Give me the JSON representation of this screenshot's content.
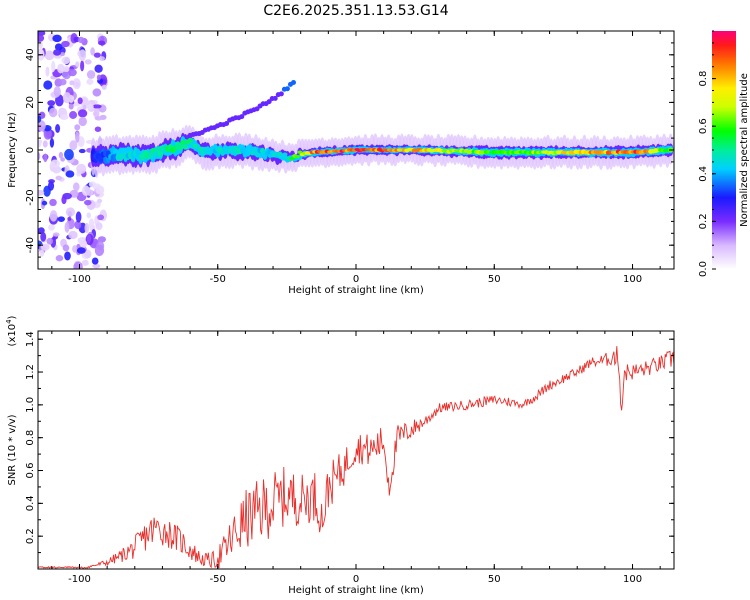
{
  "title": "C2E6.2025.351.13.53.G14",
  "chart_data": [
    {
      "type": "heatmap",
      "panel": "spectrogram",
      "xlabel": "Height of straight line (km)",
      "ylabel": "Frequency (Hz)",
      "xlim": [
        -115,
        115
      ],
      "ylim": [
        -50,
        50
      ],
      "xticks": [
        -100,
        -50,
        0,
        50,
        100
      ],
      "xtick_labels": [
        "-100",
        "-50",
        "0",
        "50",
        "100"
      ],
      "yticks": [
        -40,
        -20,
        0,
        20,
        40
      ],
      "ytick_labels": [
        "-40",
        "-20",
        "0",
        "20",
        "40"
      ],
      "colorbar": {
        "label": "Normalized spectral amplitude",
        "range": [
          0,
          1
        ],
        "ticks": [
          0.0,
          0.2,
          0.4,
          0.6,
          0.8
        ],
        "tick_labels": [
          "0.0",
          "0.2",
          "0.4",
          "0.6",
          "0.8"
        ]
      },
      "features": {
        "noise_region_x": [
          -115,
          -93
        ],
        "main_band": {
          "x": [
            -95,
            -85,
            -75,
            -65,
            -60,
            -55,
            -45,
            -35,
            -25,
            -15,
            0,
            20,
            50,
            80,
            100,
            114
          ],
          "center_hz": [
            -3,
            -2,
            -2,
            1,
            3,
            -1,
            0,
            -1,
            -3,
            -1,
            0,
            0,
            -1,
            -1,
            -1,
            0
          ],
          "halfwidth_hz": [
            4,
            4,
            4,
            4,
            3,
            3,
            3,
            3,
            2,
            2,
            2,
            2,
            2.5,
            2.5,
            2.5,
            2.5
          ],
          "peak_amplitude": [
            0.3,
            0.45,
            0.5,
            0.55,
            0.5,
            0.45,
            0.5,
            0.45,
            0.5,
            0.9,
            0.95,
            0.85,
            0.6,
            0.8,
            0.95,
            0.6
          ]
        },
        "harmonic_trace": {
          "x": [
            -60,
            -50,
            -42,
            -35,
            -28,
            -22
          ],
          "hz": [
            6,
            10,
            14,
            18,
            23,
            29
          ]
        }
      }
    },
    {
      "type": "line",
      "panel": "snr",
      "xlabel": "Height of straight line (km)",
      "ylabel": "SNR (10 * v/v)",
      "y_multiplier_label": "(x10",
      "y_multiplier_exp": "4",
      "y_multiplier_close": ")",
      "xlim": [
        -115,
        115
      ],
      "ylim": [
        0,
        1.45
      ],
      "xticks": [
        -100,
        -50,
        0,
        50,
        100
      ],
      "xtick_labels": [
        "-100",
        "-50",
        "0",
        "50",
        "100"
      ],
      "yticks": [
        0.2,
        0.4,
        0.6,
        0.8,
        1.0,
        1.2,
        1.4
      ],
      "ytick_labels": [
        "0.2",
        "0.4",
        "0.6",
        "0.8",
        "1.0",
        "1.2",
        "1.4"
      ],
      "series": [
        {
          "name": "SNR",
          "color": "#e8302c",
          "x": [
            -115,
            -100,
            -90,
            -85,
            -80,
            -75,
            -72,
            -68,
            -64,
            -60,
            -56,
            -52,
            -48,
            -45,
            -40,
            -35,
            -30,
            -25,
            -20,
            -15,
            -12,
            -10,
            -5,
            0,
            5,
            10,
            12,
            15,
            20,
            25,
            30,
            40,
            50,
            55,
            60,
            65,
            70,
            75,
            80,
            85,
            90,
            93,
            95,
            96,
            97,
            100,
            105,
            110,
            114
          ],
          "y": [
            0.0,
            0.0,
            0.04,
            0.08,
            0.13,
            0.22,
            0.25,
            0.22,
            0.18,
            0.12,
            0.06,
            0.05,
            0.1,
            0.18,
            0.3,
            0.35,
            0.4,
            0.45,
            0.42,
            0.45,
            0.3,
            0.5,
            0.6,
            0.75,
            0.72,
            0.78,
            0.5,
            0.8,
            0.85,
            0.9,
            0.98,
            1.0,
            1.03,
            1.02,
            1.0,
            1.05,
            1.12,
            1.16,
            1.2,
            1.26,
            1.27,
            1.3,
            1.28,
            0.95,
            1.2,
            1.2,
            1.22,
            1.25,
            1.28
          ],
          "jitter": [
            0.0,
            0.0,
            0.02,
            0.04,
            0.07,
            0.1,
            0.1,
            0.09,
            0.08,
            0.07,
            0.04,
            0.05,
            0.1,
            0.14,
            0.18,
            0.2,
            0.2,
            0.18,
            0.16,
            0.16,
            0.12,
            0.14,
            0.12,
            0.1,
            0.1,
            0.1,
            0.08,
            0.08,
            0.06,
            0.04,
            0.03,
            0.03,
            0.03,
            0.03,
            0.02,
            0.03,
            0.03,
            0.03,
            0.03,
            0.03,
            0.04,
            0.06,
            0.08,
            0.05,
            0.06,
            0.05,
            0.05,
            0.05,
            0.06
          ]
        }
      ]
    }
  ]
}
